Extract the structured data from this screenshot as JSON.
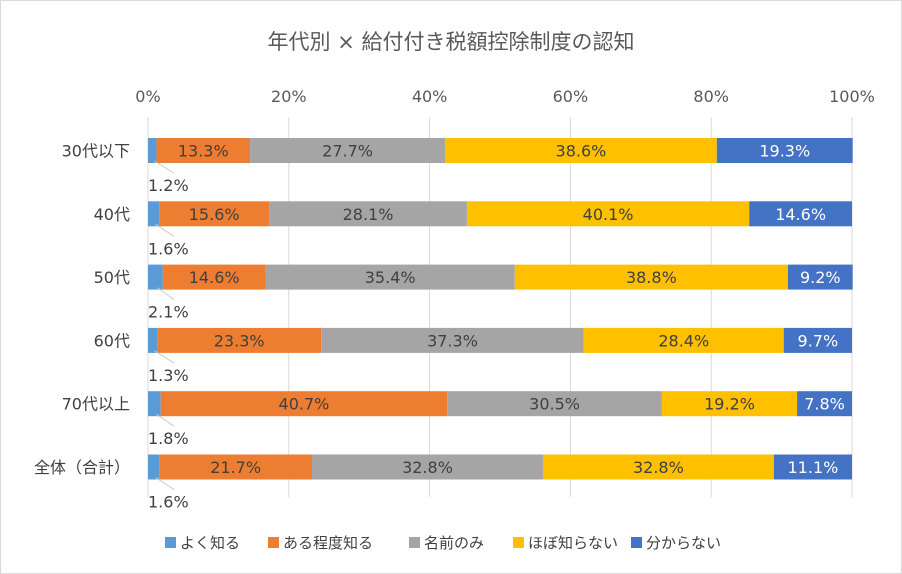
{
  "chart_data": {
    "type": "bar",
    "orientation": "horizontal",
    "stacked": "percent",
    "title": "年代別 × 給付付き税額控除制度の認知",
    "x_ticks": [
      "0%",
      "20%",
      "40%",
      "60%",
      "80%",
      "100%"
    ],
    "xlim": [
      0,
      100
    ],
    "grid": true,
    "legend_position": "bottom",
    "categories": [
      "30代以下",
      "40代",
      "50代",
      "60代",
      "70代以上",
      "全体（合計）"
    ],
    "series": [
      {
        "name": "よく知る",
        "color": "#5b9bd5",
        "values": [
          1.2,
          1.6,
          2.1,
          1.3,
          1.8,
          1.6
        ],
        "labels": [
          "1.2%",
          "1.6%",
          "2.1%",
          "1.3%",
          "1.8%",
          "1.6%"
        ]
      },
      {
        "name": "ある程度知る",
        "color": "#ed7d31",
        "values": [
          13.3,
          15.6,
          14.6,
          23.3,
          40.7,
          21.7
        ],
        "labels": [
          "13.3%",
          "15.6%",
          "14.6%",
          "23.3%",
          "40.7%",
          "21.7%"
        ]
      },
      {
        "name": "名前のみ",
        "color": "#a5a5a5",
        "values": [
          27.7,
          28.1,
          35.4,
          37.3,
          30.5,
          32.8
        ],
        "labels": [
          "27.7%",
          "28.1%",
          "35.4%",
          "37.3%",
          "30.5%",
          "32.8%"
        ]
      },
      {
        "name": "ほぼ知らない",
        "color": "#ffc000",
        "values": [
          38.6,
          40.1,
          38.8,
          28.4,
          19.2,
          32.8
        ],
        "labels": [
          "38.6%",
          "40.1%",
          "38.8%",
          "28.4%",
          "19.2%",
          "32.8%"
        ]
      },
      {
        "name": "分からない",
        "color": "#4472c4",
        "values": [
          19.3,
          14.6,
          9.2,
          9.7,
          7.8,
          11.1
        ],
        "labels": [
          "19.3%",
          "14.6%",
          "9.2%",
          "9.7%",
          "7.8%",
          "11.1%"
        ]
      }
    ]
  }
}
